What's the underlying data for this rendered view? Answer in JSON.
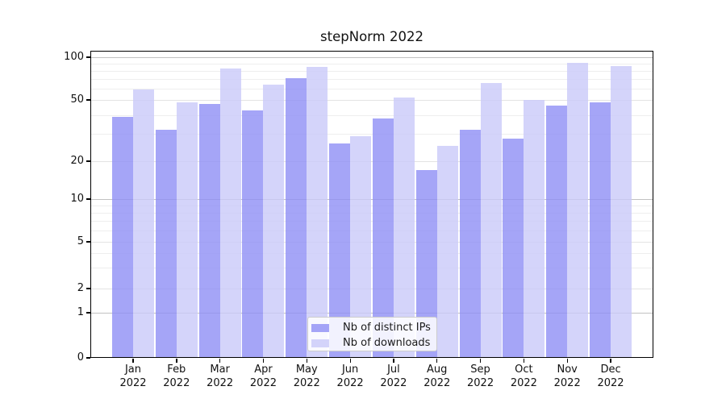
{
  "title": "stepNorm 2022",
  "chart_data": {
    "type": "bar",
    "title": "stepNorm 2022",
    "x_months": [
      "Jan",
      "Feb",
      "Mar",
      "Apr",
      "May",
      "Jun",
      "Jul",
      "Aug",
      "Sep",
      "Oct",
      "Nov",
      "Dec"
    ],
    "x_year": "2022",
    "series": [
      {
        "name": "Nb of distinct IPs",
        "color": "#8f8ff5",
        "values": [
          39,
          32,
          47,
          43,
          71,
          26,
          38,
          17,
          32,
          28,
          46,
          48
        ]
      },
      {
        "name": "Nb of downloads",
        "color": "#c9c9f9",
        "values": [
          59,
          48,
          83,
          64,
          85,
          29,
          52,
          25,
          66,
          50,
          91,
          87
        ]
      }
    ],
    "y_ticks": [
      0,
      1,
      2,
      5,
      10,
      20,
      50,
      100
    ],
    "y_minor_gridlines": [
      3,
      4,
      6,
      7,
      8,
      9,
      30,
      40,
      60,
      70,
      80,
      90
    ],
    "yscale": "symlog",
    "ylim": [
      0,
      111
    ],
    "grid": true,
    "legend_position": "lower center"
  },
  "colors": {
    "background": "#ffffff",
    "spine": "#000000",
    "grid_decade": "#c2c2c2",
    "grid_major": "#e3e3e3",
    "grid_minor": "#eeeeee",
    "text": "#1a1a1a",
    "legend_border": "#cccccc"
  }
}
